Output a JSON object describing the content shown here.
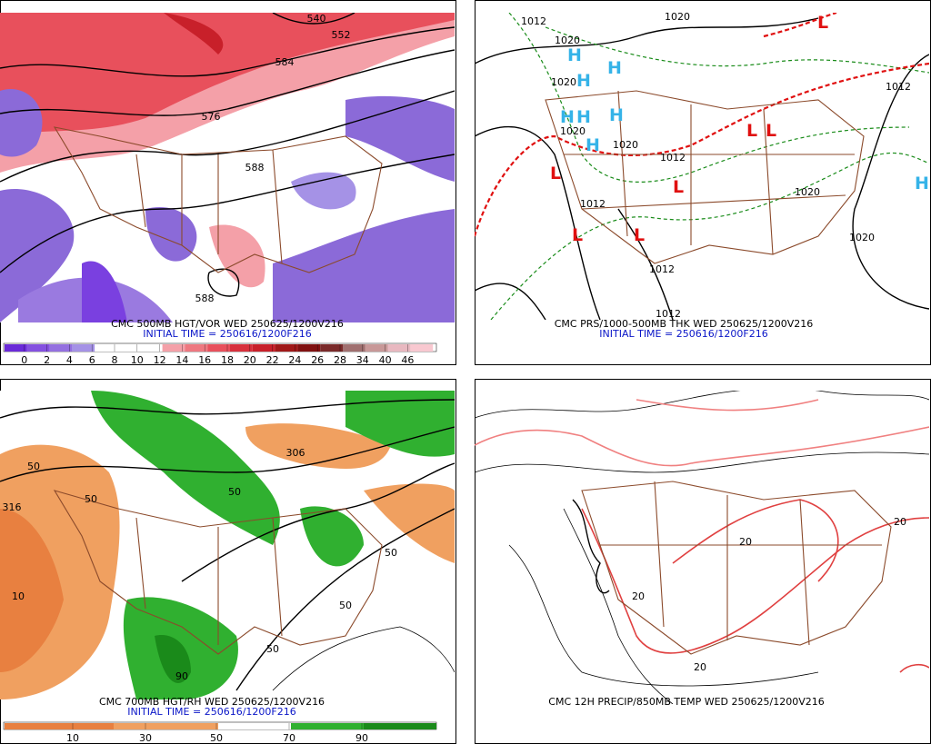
{
  "panels": [
    {
      "caption": "CMC 500MB HGT/VOR WED 250625/1200V216",
      "init": "INITIAL TIME = 250616/1200F216",
      "colorbar": [
        0,
        2,
        4,
        6,
        8,
        10,
        12,
        14,
        16,
        18,
        20,
        22,
        24,
        26,
        28,
        34,
        40,
        46
      ],
      "labels": [
        "540",
        "552",
        "584",
        "576",
        "588",
        "588"
      ]
    },
    {
      "caption": "CMC PRS/1000-500MB THK WED 250625/1200V216",
      "init": "INITIAL TIME = 250616/1200F216",
      "labels": [
        "1012",
        "1020",
        "1020",
        "1020",
        "1020",
        "1020",
        "1012",
        "1012",
        "1012",
        "1012",
        "1020",
        "1020",
        "1012",
        "H",
        "H",
        "H",
        "H",
        "H",
        "H",
        "H",
        "H",
        "L",
        "L",
        "L",
        "L",
        "L",
        "L",
        "L"
      ]
    },
    {
      "caption": "CMC 700MB HGT/RH WED 250625/1200V216",
      "init": "INITIAL TIME = 250616/1200F216",
      "colorbar": [
        10,
        30,
        50,
        70,
        90
      ],
      "labels": [
        "306",
        "316",
        "10",
        "50",
        "50",
        "50",
        "50",
        "50",
        "50",
        "90"
      ]
    },
    {
      "caption": "CMC 12H PRECIP/850MB TEMP WED 250625/1200V216",
      "labels": [
        "20",
        "20",
        "20",
        "20"
      ]
    }
  ]
}
